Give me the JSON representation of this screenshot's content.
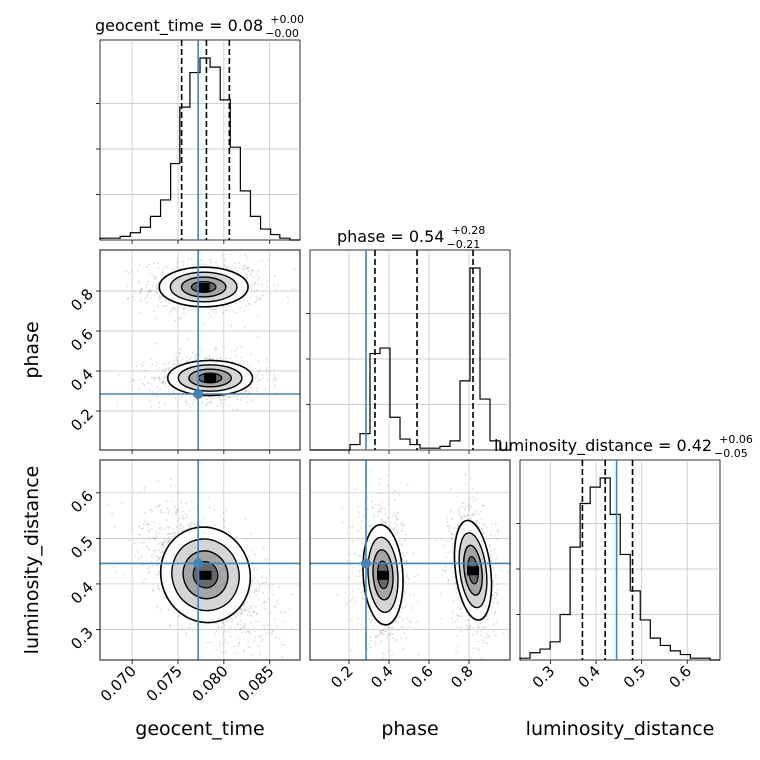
{
  "chart_data": {
    "type": "corner",
    "parameters": [
      "geocent_time",
      "phase",
      "luminosity_distance"
    ],
    "truths": {
      "geocent_time": 0.0772,
      "phase": 0.285,
      "luminosity_distance": 0.445
    },
    "colors": {
      "truth": "#4682b4",
      "hist": "#000000",
      "grid": "#c0c0c0",
      "contour_fill": "#444444"
    },
    "ranges": {
      "geocent_time": [
        0.0665,
        0.0883
      ],
      "phase": [
        0.005,
        1.005
      ],
      "luminosity_distance": [
        0.233,
        0.672
      ]
    },
    "ticks": {
      "geocent_time": [
        0.07,
        0.075,
        0.08,
        0.085
      ],
      "phase": [
        0.2,
        0.4,
        0.6,
        0.8
      ],
      "luminosity_distance": [
        0.3,
        0.4,
        0.5,
        0.6
      ]
    },
    "tick_labels": {
      "geocent_time": [
        "0.070",
        "0.075",
        "0.080",
        "0.085"
      ],
      "phase": [
        "0.2",
        "0.4",
        "0.6",
        "0.8"
      ],
      "luminosity_distance": [
        "0.3",
        "0.4",
        "0.5",
        "0.6"
      ]
    },
    "axis_labels": {
      "geocent_time": "geocent_time",
      "phase": "phase",
      "luminosity_distance": "luminosity_distance"
    },
    "titles": [
      {
        "label": "geocent_time = 0.08",
        "plus": "+0.00",
        "minus": "−0.00"
      },
      {
        "label": "phase = 0.54",
        "plus": "+0.28",
        "minus": "−0.21"
      },
      {
        "label": "luminosity_distance = 0.42",
        "plus": "+0.06",
        "minus": "−0.05"
      }
    ],
    "quantiles": {
      "geocent_time": [
        0.0754,
        0.0781,
        0.0806
      ],
      "phase": [
        0.33,
        0.54,
        0.82
      ],
      "luminosity_distance": [
        0.37,
        0.42,
        0.48
      ]
    },
    "histograms": {
      "geocent_time": {
        "edges": [
          0.0665,
          0.0676,
          0.0687,
          0.0698,
          0.0709,
          0.072,
          0.0731,
          0.0742,
          0.0752,
          0.0763,
          0.0774,
          0.0785,
          0.0796,
          0.0807,
          0.0818,
          0.0829,
          0.084,
          0.0851,
          0.0861,
          0.0872,
          0.0883
        ],
        "counts": [
          1,
          1,
          2,
          4,
          7,
          13,
          22,
          42,
          73,
          92,
          100,
          95,
          77,
          51,
          27,
          13,
          6,
          3,
          1,
          0
        ]
      },
      "phase": {
        "edges": [
          0.005,
          0.055,
          0.105,
          0.155,
          0.205,
          0.255,
          0.305,
          0.355,
          0.405,
          0.455,
          0.505,
          0.555,
          0.605,
          0.655,
          0.705,
          0.755,
          0.805,
          0.855,
          0.905,
          0.955,
          1.005
        ],
        "counts": [
          0,
          0,
          0,
          0,
          3,
          9,
          53,
          56,
          18,
          6,
          3,
          1,
          1,
          2,
          5,
          38,
          100,
          28,
          5,
          0
        ]
      },
      "luminosity_distance": {
        "edges": [
          0.233,
          0.255,
          0.277,
          0.299,
          0.321,
          0.343,
          0.365,
          0.387,
          0.409,
          0.431,
          0.453,
          0.475,
          0.497,
          0.519,
          0.541,
          0.563,
          0.585,
          0.607,
          0.628,
          0.65,
          0.672
        ],
        "counts": [
          1,
          4,
          6,
          10,
          25,
          62,
          86,
          95,
          100,
          80,
          58,
          38,
          22,
          12,
          8,
          5,
          3,
          1,
          1,
          0
        ]
      }
    },
    "scatter_blobs": {
      "geocent_time-phase": [
        {
          "cx": 0.0778,
          "cy": 0.82,
          "sx": 0.0022,
          "sy": 0.045,
          "rho": 0.0,
          "w": 0.5
        },
        {
          "cx": 0.0785,
          "cy": 0.365,
          "sx": 0.0021,
          "sy": 0.04,
          "rho": 0.0,
          "w": 0.5
        }
      ],
      "geocent_time-luminosity_distance": [
        {
          "cx": 0.078,
          "cy": 0.42,
          "sx": 0.0022,
          "sy": 0.048,
          "rho": -0.55,
          "w": 1.0
        }
      ],
      "phase-luminosity_distance": [
        {
          "cx": 0.37,
          "cy": 0.42,
          "sx": 0.045,
          "sy": 0.05,
          "rho": -0.1,
          "w": 0.5
        },
        {
          "cx": 0.82,
          "cy": 0.43,
          "sx": 0.04,
          "sy": 0.05,
          "rho": -0.2,
          "w": 0.5
        }
      ]
    }
  }
}
